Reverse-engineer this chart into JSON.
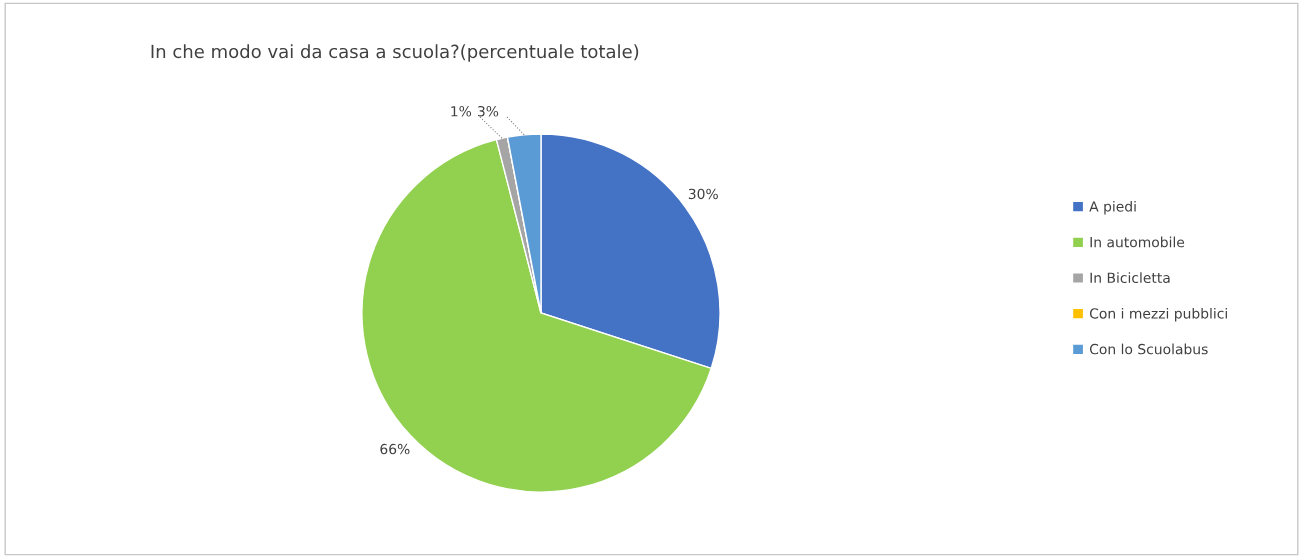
{
  "chart_data": {
    "type": "pie",
    "title": "In che modo vai da casa a scuola?(percentuale totale)",
    "categories": [
      "A piedi",
      "In automobile",
      "In Bicicletta",
      "Con i mezzi pubblici",
      "Con lo Scuolabus"
    ],
    "values": [
      30,
      66,
      1,
      0,
      3
    ],
    "colors": [
      "#4472c4",
      "#92d050",
      "#a5a5a5",
      "#ffc000",
      "#5b9bd5"
    ],
    "value_labels": [
      "30%",
      "66%",
      "1%",
      null,
      "3%"
    ],
    "legend": "right"
  }
}
